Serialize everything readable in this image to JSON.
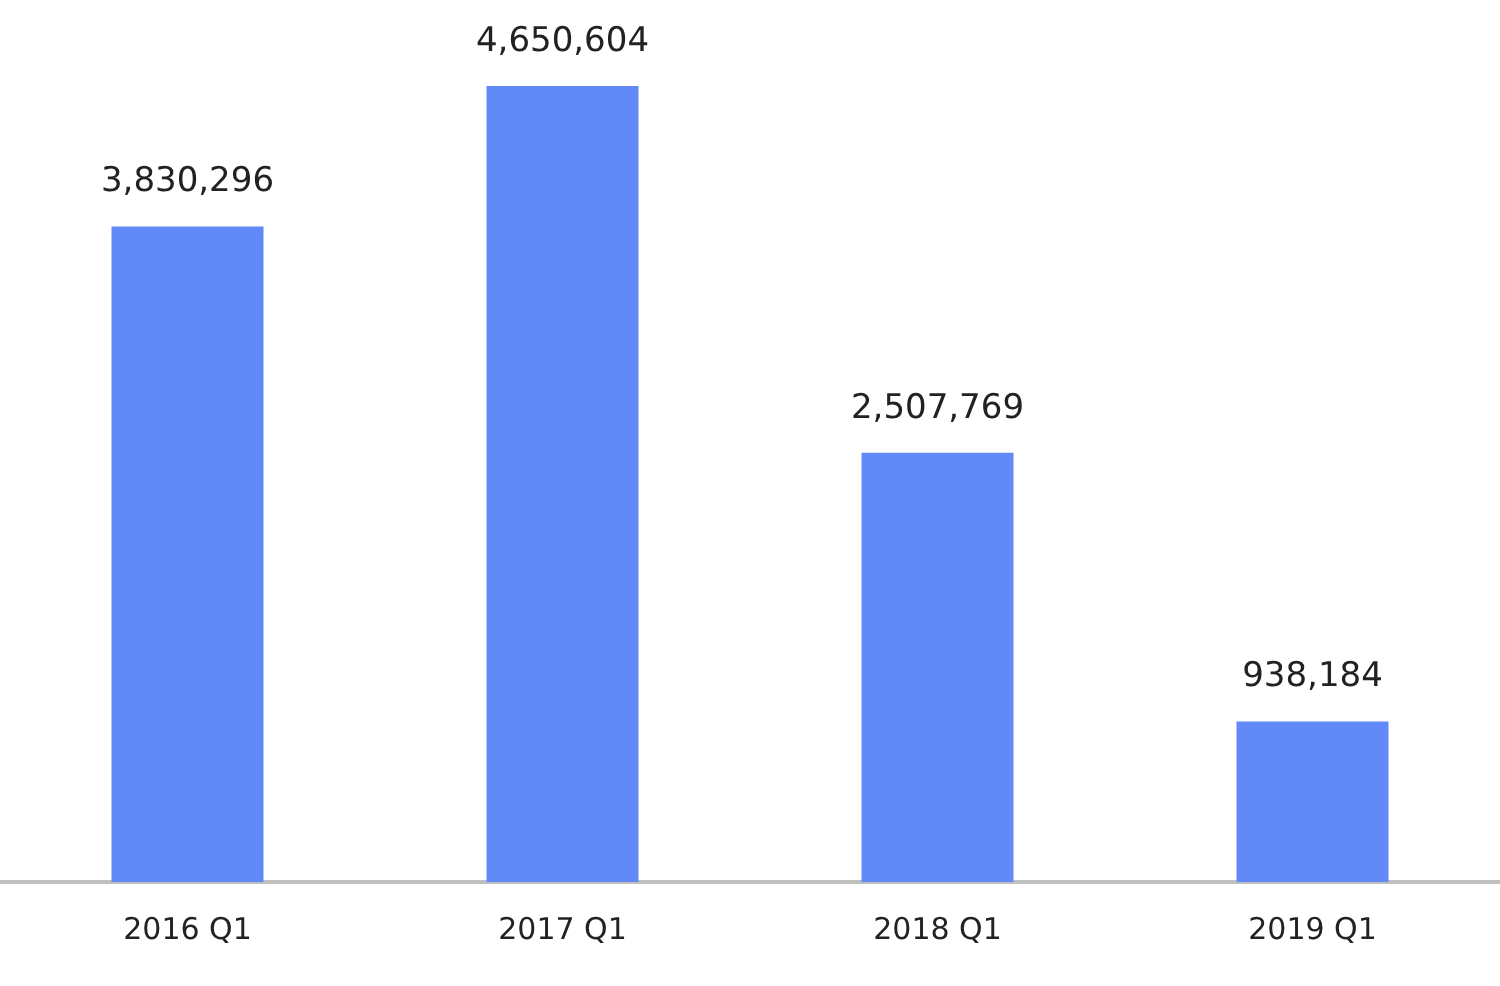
{
  "chart_data": {
    "type": "bar",
    "categories": [
      "2016 Q1",
      "2017 Q1",
      "2018 Q1",
      "2019 Q1"
    ],
    "values": [
      3830296,
      4650604,
      2507769,
      938184
    ],
    "value_labels": [
      "3,830,296",
      "4,650,604",
      "2,507,769",
      "938,184"
    ],
    "color": "#6289f8"
  }
}
